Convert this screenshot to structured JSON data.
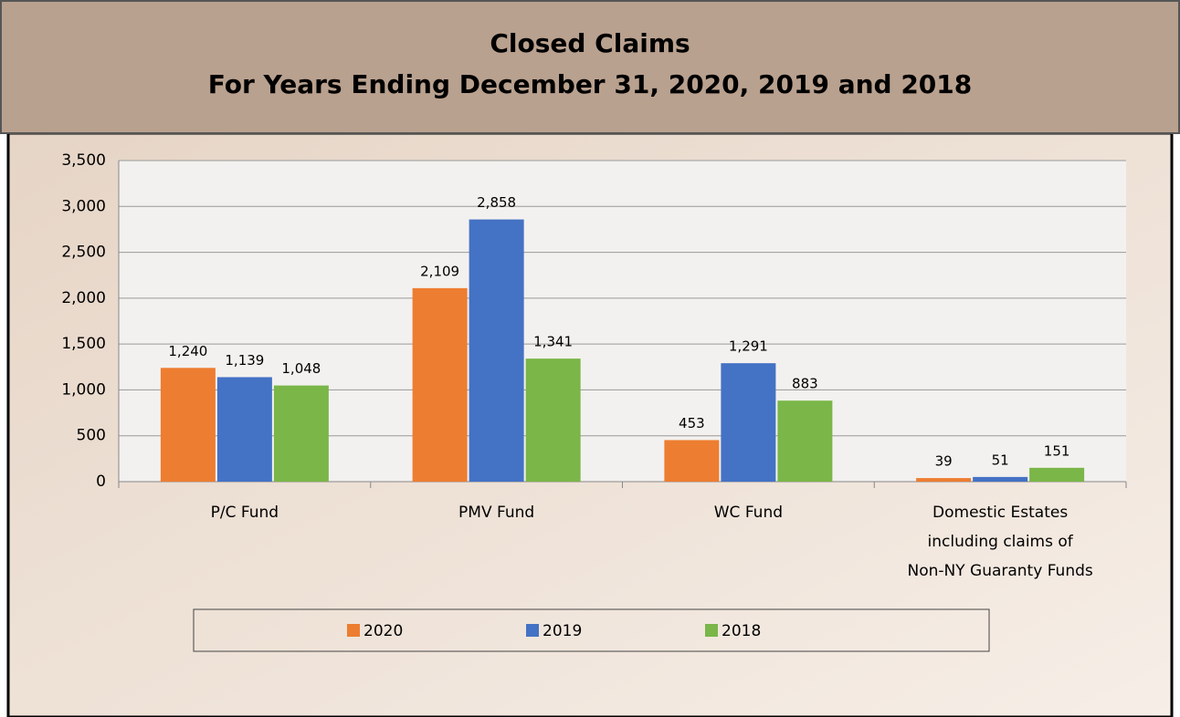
{
  "chart_data": {
    "type": "bar",
    "title": [
      "Closed Claims",
      "For Years Ending December 31, 2020, 2019 and 2018"
    ],
    "categories": [
      "P/C Fund",
      "PMV Fund",
      "WC Fund",
      "Domestic Estates including claims of Non-NY Guaranty Funds"
    ],
    "series": [
      {
        "name": "2020",
        "color": "#ed7d31",
        "values": [
          1240,
          2109,
          453,
          39
        ],
        "value_labels": [
          "1,240",
          "2,109",
          "453",
          "39"
        ]
      },
      {
        "name": "2019",
        "color": "#4472c4",
        "values": [
          1139,
          2858,
          1291,
          51
        ],
        "value_labels": [
          "1,139",
          "2,858",
          "1,291",
          "51"
        ]
      },
      {
        "name": "2018",
        "color": "#7ab648",
        "values": [
          1048,
          1341,
          883,
          151
        ],
        "value_labels": [
          "1,048",
          "1,341",
          "883",
          "151"
        ]
      }
    ],
    "ylim": [
      0,
      3500
    ],
    "yticks": [
      0,
      500,
      {
        "value": 1000,
        "label": "1,000"
      },
      {
        "value": 1500,
        "label": "1,500"
      },
      {
        "value": 2000,
        "label": "2,000"
      },
      {
        "value": 2500,
        "label": "2,500"
      },
      {
        "value": 3000,
        "label": "3,000"
      },
      {
        "value": 3500,
        "label": "3,500"
      }
    ],
    "grid": true,
    "legend": "bottom"
  }
}
